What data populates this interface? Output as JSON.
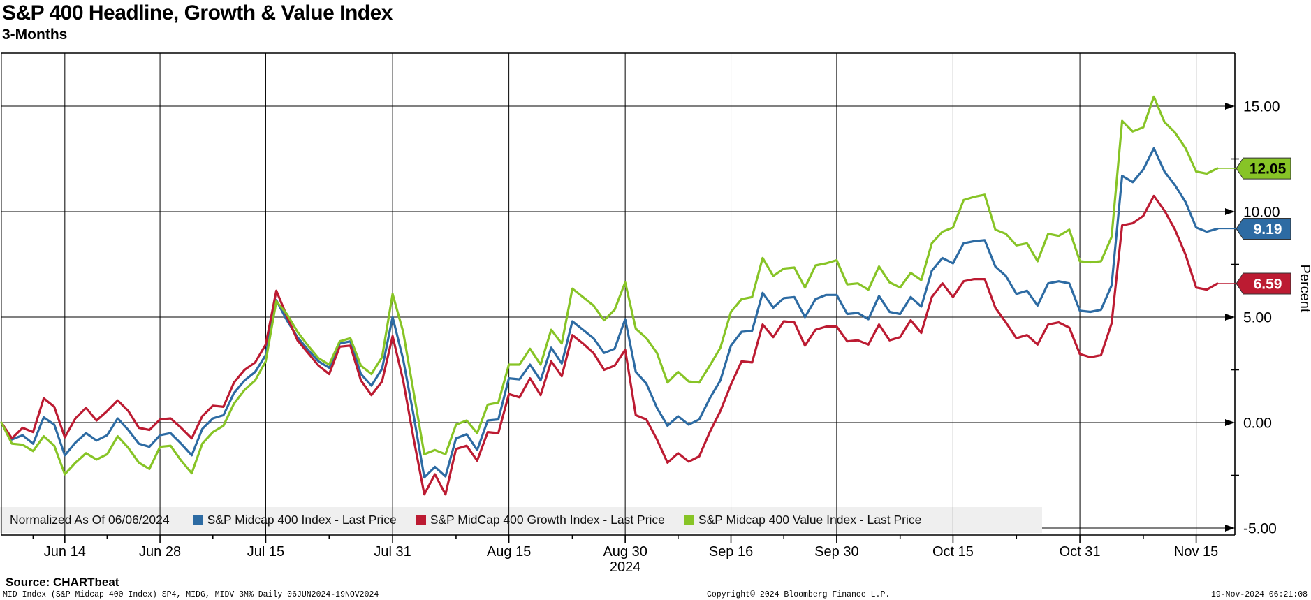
{
  "header": {
    "title": "S&P 400 Headline, Growth & Value Index",
    "subtitle": "3-Months"
  },
  "legend": {
    "normalized_label": "Normalized As Of 06/06/2024",
    "items": [
      {
        "label": "S&P Midcap 400 Index - Last Price",
        "color": "#2d6ba3"
      },
      {
        "label": "S&P MidCap 400 Growth Index - Last Price",
        "color": "#bc1b32"
      },
      {
        "label": "S&P Midcap 400 Value Index - Last Price",
        "color": "#87c426"
      }
    ]
  },
  "axes": {
    "y_label": "Percent",
    "y_ticks": [
      {
        "value": 15,
        "label": "15.00"
      },
      {
        "value": 10,
        "label": "10.00"
      },
      {
        "value": 5,
        "label": "5.00"
      },
      {
        "value": 0,
        "label": "0.00"
      },
      {
        "value": -5,
        "label": "-5.00"
      }
    ],
    "y_minor": [
      12.5,
      7.5,
      2.5,
      -2.5
    ],
    "x_ticks": [
      {
        "day": 6,
        "label": "Jun 14"
      },
      {
        "day": 15,
        "label": "Jun 28"
      },
      {
        "day": 25,
        "label": "Jul 15"
      },
      {
        "day": 37,
        "label": "Jul 31"
      },
      {
        "day": 48,
        "label": "Aug 15"
      },
      {
        "day": 59,
        "label": "Aug 30"
      },
      {
        "day": 69,
        "label": "Sep 16"
      },
      {
        "day": 79,
        "label": "Sep 30"
      },
      {
        "day": 90,
        "label": "Oct 15"
      },
      {
        "day": 102,
        "label": "Oct 31"
      },
      {
        "day": 113,
        "label": "Nov 15"
      }
    ],
    "x_minor_days": [
      3,
      10,
      20,
      31,
      43,
      54,
      64,
      74,
      85,
      96,
      108
    ],
    "x_year": {
      "day": 59,
      "label": "2024"
    }
  },
  "chart_data": {
    "type": "line",
    "title": "S&P 400 Headline, Growth & Value Index",
    "subtitle": "3-Months",
    "ylabel": "Percent",
    "ylim": [
      -5.3,
      17.8
    ],
    "grid": true,
    "normalized_as_of": "06/06/2024",
    "period": "06JUN2024-19NOV2024",
    "x_dates": [
      "06/06",
      "06/07",
      "06/10",
      "06/11",
      "06/12",
      "06/13",
      "06/14",
      "06/17",
      "06/18",
      "06/20",
      "06/21",
      "06/24",
      "06/25",
      "06/26",
      "06/27",
      "06/28",
      "07/01",
      "07/02",
      "07/03",
      "07/05",
      "07/08",
      "07/09",
      "07/10",
      "07/11",
      "07/12",
      "07/15",
      "07/16",
      "07/17",
      "07/18",
      "07/19",
      "07/22",
      "07/23",
      "07/24",
      "07/25",
      "07/26",
      "07/29",
      "07/30",
      "07/31",
      "08/01",
      "08/02",
      "08/05",
      "08/06",
      "08/07",
      "08/08",
      "08/09",
      "08/12",
      "08/13",
      "08/14",
      "08/15",
      "08/16",
      "08/19",
      "08/20",
      "08/21",
      "08/22",
      "08/23",
      "08/26",
      "08/27",
      "08/28",
      "08/29",
      "08/30",
      "09/03",
      "09/04",
      "09/05",
      "09/06",
      "09/09",
      "09/10",
      "09/11",
      "09/12",
      "09/13",
      "09/16",
      "09/17",
      "09/18",
      "09/19",
      "09/20",
      "09/23",
      "09/24",
      "09/25",
      "09/26",
      "09/27",
      "09/30",
      "10/01",
      "10/02",
      "10/03",
      "10/04",
      "10/07",
      "10/08",
      "10/09",
      "10/10",
      "10/11",
      "10/14",
      "10/15",
      "10/16",
      "10/17",
      "10/18",
      "10/21",
      "10/22",
      "10/23",
      "10/24",
      "10/25",
      "10/28",
      "10/29",
      "10/30",
      "10/31",
      "11/01",
      "11/04",
      "11/05",
      "11/06",
      "11/07",
      "11/08",
      "11/11",
      "11/12",
      "11/13",
      "11/14",
      "11/15",
      "11/18",
      "11/19"
    ],
    "series": [
      {
        "id": "sp-midcap-400-index",
        "name": "S&P Midcap 400 Index - Last Price",
        "color": "#2d6ba3",
        "badge_text_color": "#ffffff",
        "final_label": "9.19",
        "values": [
          0,
          -0.8,
          -0.6,
          -1,
          0.25,
          -0.1,
          -1.55,
          -0.95,
          -0.5,
          -0.85,
          -0.6,
          0.2,
          -0.35,
          -1,
          -1.15,
          -0.6,
          -0.5,
          -1,
          -1.55,
          -0.3,
          0.2,
          0.35,
          1.4,
          2,
          2.4,
          3.2,
          5.8,
          4.85,
          4.05,
          3.45,
          2.9,
          2.6,
          3.75,
          3.85,
          2.3,
          1.75,
          2.55,
          5,
          3,
          0.3,
          -2.6,
          -2.1,
          -2.55,
          -0.75,
          -0.55,
          -1.3,
          0.1,
          0.15,
          2.1,
          2.05,
          2.75,
          2,
          3.55,
          2.8,
          4.8,
          4.4,
          4,
          3.3,
          3.5,
          4.9,
          2.4,
          1.85,
          0.7,
          -0.15,
          0.3,
          -0.1,
          0.15,
          1.15,
          2,
          3.65,
          4.3,
          4.35,
          6.15,
          5.45,
          5.9,
          5.95,
          5,
          5.85,
          6.05,
          6.05,
          5.15,
          5.2,
          4.9,
          6,
          5.25,
          5.15,
          5.95,
          5.5,
          7.2,
          7.8,
          7.55,
          8.5,
          8.6,
          8.65,
          7.4,
          6.95,
          6.1,
          6.25,
          5.55,
          6.6,
          6.7,
          6.6,
          5.3,
          5.25,
          5.35,
          6.5,
          11.7,
          11.4,
          12,
          13,
          11.9,
          11.25,
          10.45,
          9.25,
          9.05,
          9.19
        ]
      },
      {
        "id": "sp-midcap-400-growth",
        "name": "S&P MidCap 400 Growth Index - Last Price",
        "color": "#bc1b32",
        "badge_text_color": "#ffffff",
        "final_label": "6.59",
        "values": [
          0,
          -0.75,
          -0.25,
          -0.45,
          1.15,
          0.75,
          -0.7,
          0.2,
          0.7,
          0.1,
          0.55,
          1.05,
          0.55,
          -0.25,
          -0.35,
          0.15,
          0.2,
          -0.25,
          -0.75,
          0.3,
          0.8,
          0.75,
          1.9,
          2.5,
          2.85,
          3.7,
          6.25,
          5.05,
          3.9,
          3.3,
          2.7,
          2.3,
          3.6,
          3.65,
          2,
          1.3,
          1.95,
          4.1,
          2,
          -0.8,
          -3.4,
          -2.45,
          -3.4,
          -1.25,
          -1.1,
          -1.8,
          -0.45,
          -0.5,
          1.35,
          1.2,
          2.1,
          1.3,
          2.9,
          2.2,
          4.15,
          3.75,
          3.3,
          2.5,
          2.7,
          3.45,
          0.35,
          0.15,
          -0.8,
          -1.9,
          -1.45,
          -1.85,
          -1.6,
          -0.45,
          0.55,
          1.8,
          2.9,
          2.85,
          4.65,
          4.05,
          4.8,
          4.75,
          3.65,
          4.4,
          4.55,
          4.55,
          3.85,
          3.9,
          3.7,
          4.65,
          3.9,
          4.05,
          4.85,
          4.25,
          5.95,
          6.6,
          5.95,
          6.7,
          6.8,
          6.8,
          5.45,
          4.75,
          4,
          4.15,
          3.7,
          4.65,
          4.75,
          4.5,
          3.25,
          3.1,
          3.2,
          4.7,
          9.35,
          9.45,
          9.8,
          10.75,
          10.05,
          9.15,
          7.95,
          6.4,
          6.3,
          6.59
        ]
      },
      {
        "id": "sp-midcap-400-value",
        "name": "S&P Midcap 400 Value Index - Last Price",
        "color": "#87c426",
        "badge_text_color": "#000000",
        "final_label": "12.05",
        "values": [
          0,
          -1,
          -1.05,
          -1.35,
          -0.65,
          -1.1,
          -2.45,
          -1.9,
          -1.45,
          -1.75,
          -1.5,
          -0.65,
          -1.2,
          -1.9,
          -2.2,
          -1.15,
          -1.1,
          -1.8,
          -2.4,
          -1,
          -0.45,
          -0.15,
          0.9,
          1.55,
          2,
          2.9,
          5.75,
          5.15,
          4.3,
          3.65,
          3.05,
          2.75,
          3.85,
          4,
          2.7,
          2.3,
          3.1,
          6.1,
          4.3,
          1.4,
          -1.5,
          -1.3,
          -1.5,
          -0.1,
          0.1,
          -0.5,
          0.85,
          0.95,
          2.75,
          2.75,
          3.5,
          2.75,
          4.4,
          3.75,
          6.35,
          5.95,
          5.55,
          4.85,
          5.35,
          6.65,
          4.45,
          4,
          3.3,
          1.9,
          2.4,
          1.95,
          1.9,
          2.7,
          3.55,
          5.25,
          5.85,
          5.95,
          7.8,
          6.95,
          7.3,
          7.35,
          6.4,
          7.45,
          7.55,
          7.7,
          6.55,
          6.6,
          6.3,
          7.4,
          6.65,
          6.4,
          7.1,
          6.75,
          8.5,
          9.05,
          9.25,
          10.55,
          10.7,
          10.8,
          9.15,
          8.95,
          8.4,
          8.5,
          7.65,
          8.95,
          8.85,
          9.15,
          7.65,
          7.6,
          7.65,
          8.8,
          14.3,
          13.8,
          14,
          15.45,
          14.25,
          13.75,
          13,
          11.9,
          11.8,
          12.05
        ]
      }
    ]
  },
  "footer": {
    "source": "Source: CHARTbeat",
    "meta": "MID Index (S&P Midcap 400 Index) SP4, MIDG, MIDV 3M%  Daily 06JUN2024-19NOV2024",
    "copyright": "Copyright© 2024 Bloomberg Finance L.P.",
    "datetime": "19-Nov-2024 06:21:08"
  }
}
